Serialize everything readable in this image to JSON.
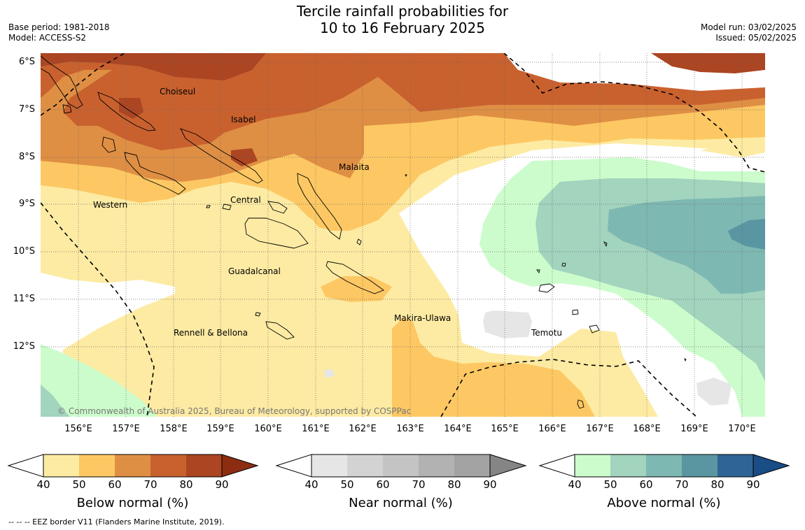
{
  "title": {
    "line1": "Tercile rainfall probabilities for",
    "line2": "10 to 16 February 2025"
  },
  "meta": {
    "base_period": "Base period: 1981-2018",
    "model": "Model: ACCESS-S2",
    "model_run": "Model run: 03/02/2025",
    "issued": "Issued: 05/02/2025"
  },
  "map": {
    "latitude_labels": [
      "6°S",
      "7°S",
      "8°S",
      "9°S",
      "10°S",
      "11°S",
      "12°S"
    ],
    "longitude_labels": [
      "156°E",
      "157°E",
      "158°E",
      "159°E",
      "160°E",
      "161°E",
      "162°E",
      "163°E",
      "164°E",
      "165°E",
      "166°E",
      "167°E",
      "168°E",
      "169°E",
      "170°E"
    ],
    "provinces": [
      "Choiseul",
      "Isabel",
      "Malaita",
      "Western",
      "Central",
      "Guadalcanal",
      "Makira-Ulawa",
      "Rennell & Bellona",
      "Temotu"
    ],
    "copyright": "© Commonwealth of Australia 2025, Bureau of Meteorology, supported by COSPPac",
    "colors": {
      "below": [
        "#fdeba3",
        "#fdc863",
        "#df8f44",
        "#c9612f",
        "#ab4522",
        "#8c2d12"
      ],
      "near": [
        "#e6e6e6",
        "#d3d3d3",
        "#c4c4c4",
        "#b2b2b2",
        "#a3a3a3",
        "#858585"
      ],
      "above": [
        "#ccfccc",
        "#a2d4be",
        "#7eb8b2",
        "#5a96a2",
        "#2f6496",
        "#1a4c86"
      ]
    }
  },
  "colorbars": [
    {
      "id": "below",
      "title": "Below normal (%)",
      "ticks": [
        "40",
        "50",
        "60",
        "70",
        "80",
        "90"
      ]
    },
    {
      "id": "near",
      "title": "Near normal (%)",
      "ticks": [
        "40",
        "50",
        "60",
        "70",
        "80",
        "90"
      ]
    },
    {
      "id": "above",
      "title": "Above normal (%)",
      "ticks": [
        "40",
        "50",
        "60",
        "70",
        "80",
        "90"
      ]
    }
  ],
  "footer": "-- -- -- EEZ border V11 (Flanders Marine Institute, 2019)."
}
